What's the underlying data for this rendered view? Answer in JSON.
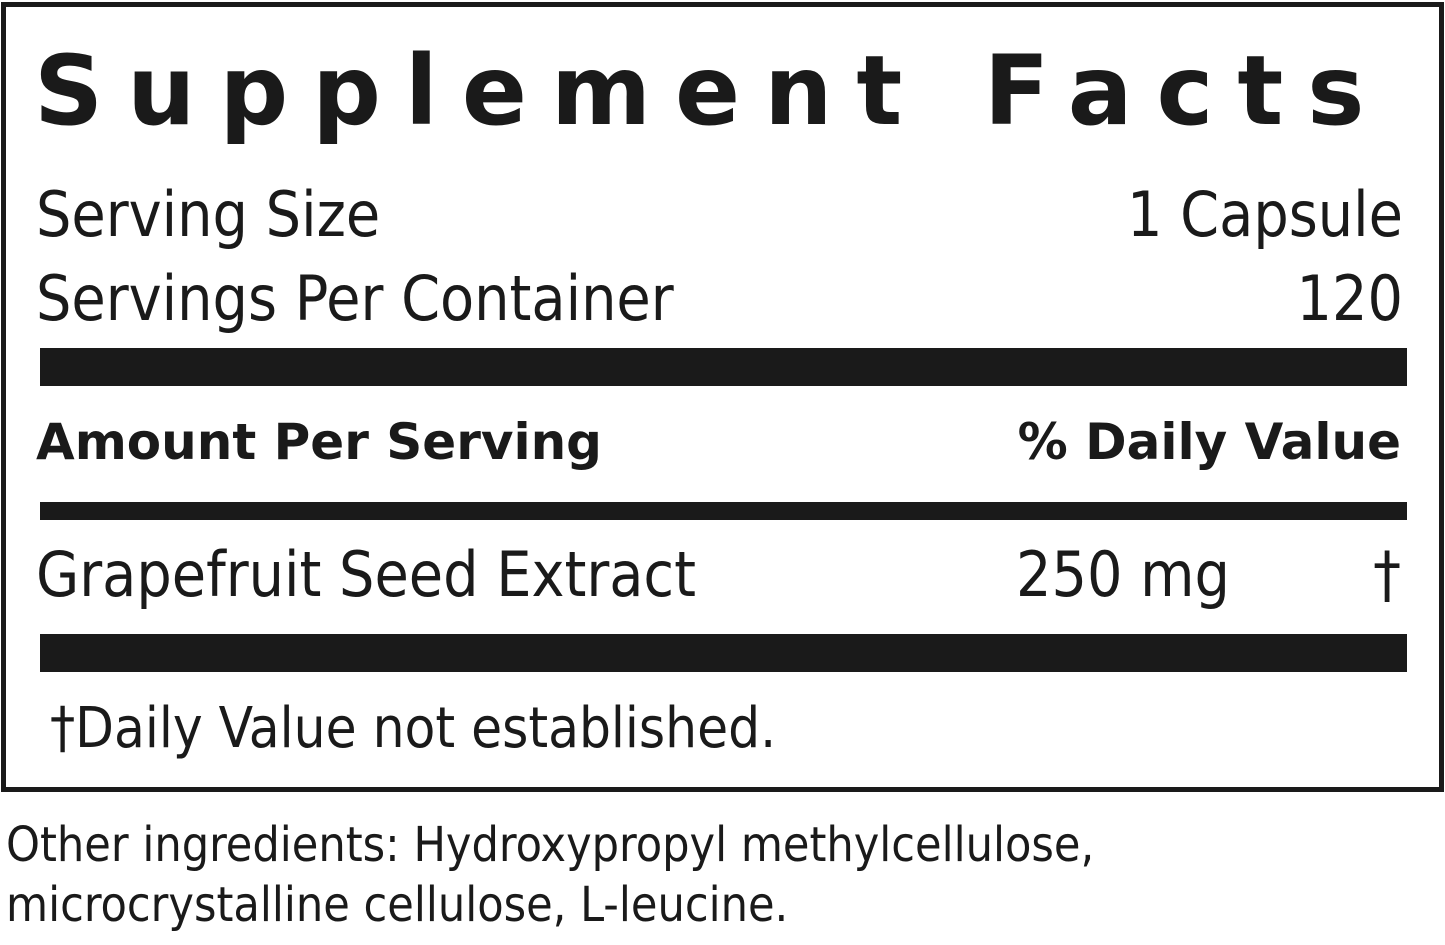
{
  "title": "Supplement Facts",
  "serving_size": {
    "label": "Serving Size",
    "value": "1 Capsule"
  },
  "servings_per_container": {
    "label": "Servings Per Container",
    "value": "120"
  },
  "header": {
    "amount": "Amount Per Serving",
    "daily_value": "% Daily Value"
  },
  "rows": [
    {
      "name": "Grapefruit Seed Extract",
      "amount": "250 mg",
      "daily_value": "†"
    }
  ],
  "footnote": "†Daily Value not established.",
  "other_ingredients": "Other ingredients: Hydroxypropyl methylcellulose, microcrystalline cellulose, L-leucine."
}
